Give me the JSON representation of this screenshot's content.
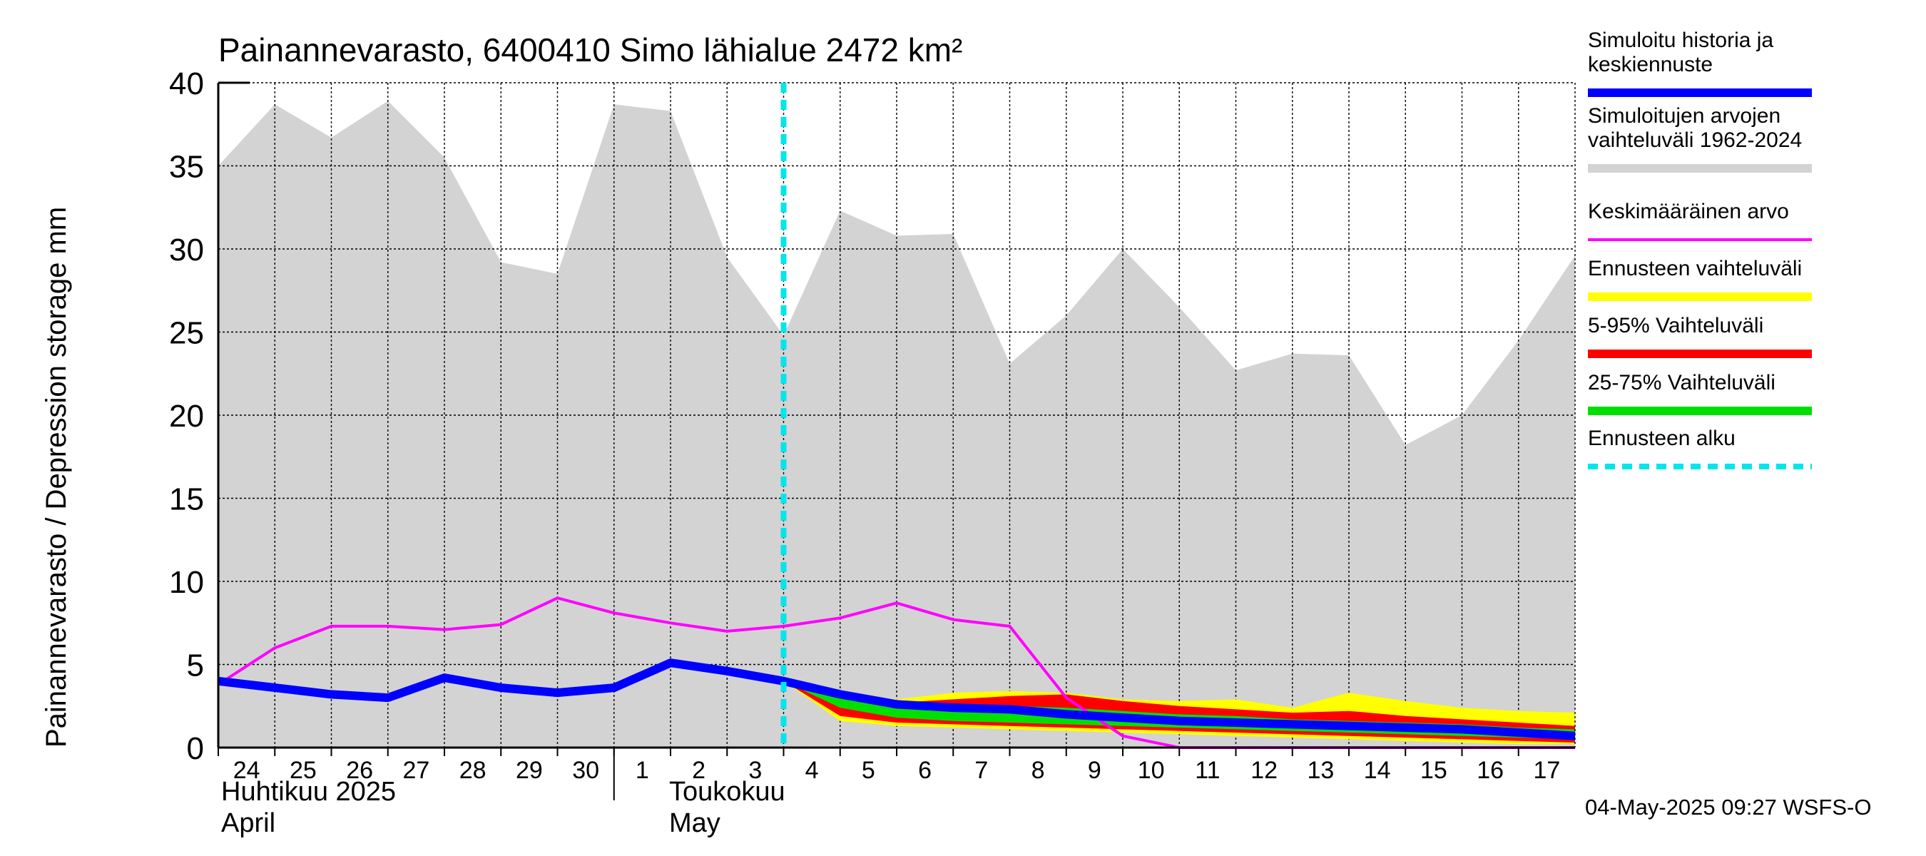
{
  "chart_data": {
    "type": "area",
    "title": "Painannevarasto, 6400410 Simo lähialue 2472 km²",
    "ylabel": "Painannevarasto / Depression storage    mm",
    "ylim": [
      0,
      40
    ],
    "yticks": [
      0,
      5,
      10,
      15,
      20,
      25,
      30,
      35,
      40
    ],
    "grid": true,
    "x_tick_labels": [
      "24",
      "25",
      "26",
      "27",
      "28",
      "29",
      "30",
      "1",
      "2",
      "3",
      "4",
      "5",
      "6",
      "7",
      "8",
      "9",
      "10",
      "11",
      "12",
      "13",
      "14",
      "15",
      "16",
      "17"
    ],
    "months": [
      {
        "line1": "Huhtikuu  2025",
        "line2": "April"
      },
      {
        "line1": "Toukokuu",
        "line2": "May"
      }
    ],
    "forecast_start_index": 10,
    "series": [
      {
        "name": "Simuloitujen arvojen vaihteluväli 1962-2024",
        "color": "#d3d3d3",
        "upper": [
          35.0,
          38.7,
          36.7,
          38.9,
          35.5,
          29.2,
          28.5,
          38.7,
          38.3,
          29.5,
          24.8,
          32.3,
          30.8,
          30.9,
          23.1,
          26.0,
          30.0,
          26.5,
          22.7,
          23.7,
          23.6,
          18.2,
          20.0,
          24.5,
          29.6
        ],
        "lower": [
          0,
          0,
          0,
          0,
          0,
          0,
          0,
          0,
          0,
          0,
          0,
          0,
          0,
          0,
          0,
          0,
          0,
          0,
          0,
          0,
          0,
          0,
          0,
          0,
          0
        ]
      },
      {
        "name": "Ennusteen vaihteluväli",
        "color": "#ffff00",
        "upper": [
          null,
          null,
          null,
          null,
          null,
          null,
          null,
          null,
          null,
          null,
          4.0,
          3.3,
          2.9,
          3.3,
          3.4,
          3.3,
          2.9,
          2.8,
          2.9,
          2.4,
          3.3,
          2.8,
          2.4,
          2.2,
          2.1
        ],
        "lower": [
          null,
          null,
          null,
          null,
          null,
          null,
          null,
          null,
          null,
          null,
          4.0,
          1.6,
          1.3,
          1.2,
          1.1,
          1.0,
          0.9,
          0.8,
          0.7,
          0.6,
          0.5,
          0.4,
          0.3,
          0.2,
          0.2
        ]
      },
      {
        "name": "5-95% Vaihteluväli",
        "color": "#ff0000",
        "upper": [
          null,
          null,
          null,
          null,
          null,
          null,
          null,
          null,
          null,
          null,
          4.0,
          3.2,
          2.7,
          2.9,
          3.1,
          3.2,
          2.8,
          2.5,
          2.3,
          2.1,
          2.2,
          1.9,
          1.7,
          1.5,
          1.3
        ],
        "lower": [
          null,
          null,
          null,
          null,
          null,
          null,
          null,
          null,
          null,
          null,
          4.0,
          1.9,
          1.5,
          1.4,
          1.3,
          1.2,
          1.1,
          1.0,
          0.9,
          0.8,
          0.7,
          0.6,
          0.5,
          0.4,
          0.3
        ]
      },
      {
        "name": "25-75% Vaihteluväli",
        "color": "#00e000",
        "upper": [
          null,
          null,
          null,
          null,
          null,
          null,
          null,
          null,
          null,
          null,
          4.0,
          3.0,
          2.5,
          2.4,
          2.5,
          2.4,
          2.2,
          2.0,
          1.9,
          1.7,
          1.6,
          1.5,
          1.4,
          1.2,
          1.1
        ],
        "lower": [
          null,
          null,
          null,
          null,
          null,
          null,
          null,
          null,
          null,
          null,
          4.0,
          2.4,
          1.8,
          1.6,
          1.5,
          1.4,
          1.3,
          1.2,
          1.1,
          1.0,
          0.9,
          0.8,
          0.7,
          0.6,
          0.5
        ]
      },
      {
        "name": "Simuloitu historia ja keskiennuste",
        "color": "#0000ff",
        "values": [
          4.0,
          3.6,
          3.2,
          3.0,
          4.2,
          3.6,
          3.3,
          3.6,
          5.1,
          4.6,
          4.0,
          3.2,
          2.6,
          2.4,
          2.3,
          2.0,
          1.8,
          1.6,
          1.5,
          1.4,
          1.3,
          1.2,
          1.1,
          0.9,
          0.7
        ]
      },
      {
        "name": "Keskimääräinen arvo",
        "color": "#ff00ff",
        "values": [
          3.8,
          6.0,
          7.3,
          7.3,
          7.1,
          7.4,
          9.0,
          8.1,
          7.5,
          7.0,
          7.3,
          7.8,
          8.7,
          7.7,
          7.3,
          3.0,
          0.7,
          0.0,
          0.0,
          0.0,
          0.0,
          0.0,
          0.0,
          0.0,
          0.0
        ]
      }
    ]
  },
  "legend": [
    {
      "label": "Simuloitu historia ja keskiennuste",
      "color": "#0000ff",
      "style": "solid"
    },
    {
      "label": "Simuloitujen arvojen vaihteluväli 1962-2024",
      "color": "#d3d3d3",
      "style": "solid"
    },
    {
      "label": "Keskimääräinen arvo",
      "color": "#ff00ff",
      "style": "solid"
    },
    {
      "label": "Ennusteen vaihteluväli",
      "color": "#ffff00",
      "style": "solid"
    },
    {
      "label": "5-95% Vaihteluväli",
      "color": "#ff0000",
      "style": "solid"
    },
    {
      "label": "25-75% Vaihteluväli",
      "color": "#00e000",
      "style": "solid"
    },
    {
      "label": "Ennusteen alku",
      "color": "#00e5ee",
      "style": "dashed"
    }
  ],
  "footer": "04-May-2025 09:27 WSFS-O"
}
